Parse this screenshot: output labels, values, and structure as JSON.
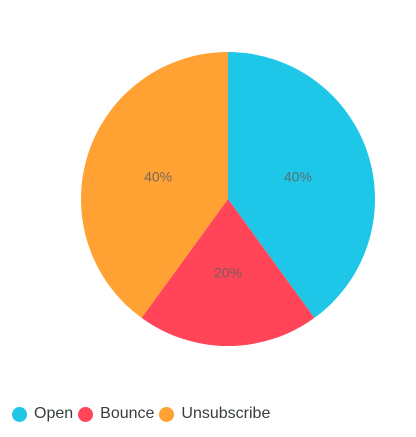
{
  "chart_data": {
    "type": "pie",
    "categories": [
      "Open",
      "Bounce",
      "Unsubscribe"
    ],
    "values": [
      40,
      20,
      40
    ],
    "data_labels": [
      "40%",
      "20%",
      "40%"
    ],
    "colors": [
      "#1ec7e8",
      "#ff4557",
      "#ffa133"
    ],
    "legend_position": "bottom-left",
    "title": ""
  },
  "legend": {
    "items": [
      {
        "label": "Open",
        "color": "#1ec7e8"
      },
      {
        "label": "Bounce",
        "color": "#ff4557"
      },
      {
        "label": "Unsubscribe",
        "color": "#ffa133"
      }
    ]
  }
}
